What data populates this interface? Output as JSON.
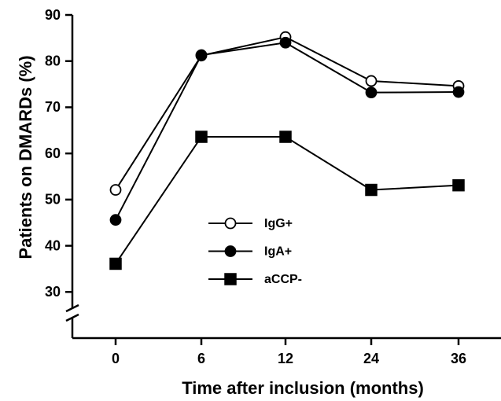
{
  "chart_data": {
    "type": "line",
    "x_label": "Time after inclusion (months)",
    "y_label": "Patients on DMARDs (%)",
    "categories": [
      "0",
      "6",
      "12",
      "24",
      "36"
    ],
    "series": [
      {
        "name": "IgG+",
        "color": "#000000",
        "marker": "circle",
        "marker_fill": "#ffffff",
        "values": [
          52.1,
          81.2,
          85.2,
          75.7,
          74.6
        ]
      },
      {
        "name": "IgA+",
        "color": "#000000",
        "marker": "circle",
        "marker_fill": "#000000",
        "values": [
          45.6,
          81.3,
          84.0,
          73.2,
          73.3
        ]
      },
      {
        "name": "aCCP-",
        "color": "#000000",
        "marker": "square",
        "marker_fill": "#000000",
        "values": [
          36.1,
          63.6,
          63.6,
          52.1,
          53.1
        ]
      }
    ],
    "ylim": [
      20,
      90
    ],
    "yticks": [
      30,
      40,
      50,
      60,
      70,
      80,
      90
    ],
    "y_axis_break": true,
    "grid": false,
    "legend": "center"
  }
}
